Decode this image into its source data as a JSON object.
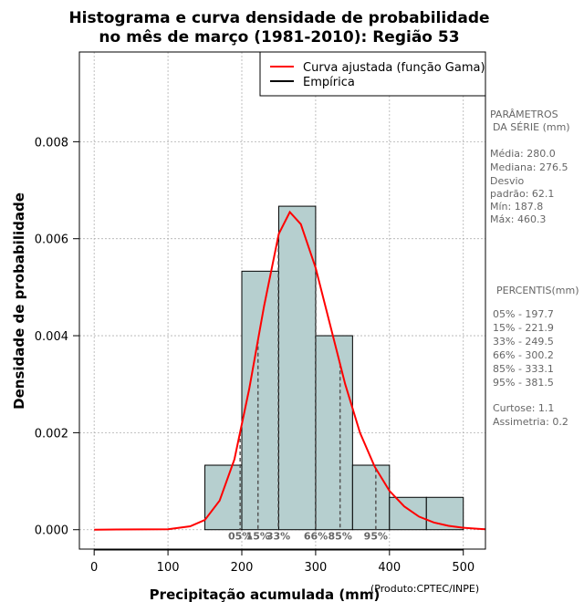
{
  "chart_data": {
    "type": "bar",
    "title": [
      "Histograma e curva densidade de probabilidade",
      "no mês de março (1981-2010): Região 53"
    ],
    "xlabel": "Precipitação acumulada (mm)",
    "ylabel": "Densidade de probabilidade",
    "xlim": [
      -20,
      530
    ],
    "ylim": [
      -0.0004,
      0.00985
    ],
    "x_ticks": [
      0,
      100,
      200,
      300,
      400,
      500
    ],
    "y_ticks": [
      0.0,
      0.002,
      0.004,
      0.006,
      0.008
    ],
    "y_tick_labels": [
      "0.000",
      "0.002",
      "0.004",
      "0.006",
      "0.008"
    ],
    "grid": true,
    "histogram": {
      "bin_edges": [
        150,
        200,
        250,
        300,
        350,
        400,
        450,
        500
      ],
      "densities": [
        0.00133,
        0.00533,
        0.00667,
        0.004,
        0.00133,
        0.000667,
        0.000667
      ],
      "fill_color": "#b6cfcf"
    },
    "fitted_curve": {
      "name": "Curva ajustada (função Gama)",
      "color": "#ff0000",
      "x": [
        0,
        100,
        130,
        150,
        170,
        190,
        210,
        230,
        250,
        265,
        280,
        300,
        320,
        340,
        360,
        380,
        400,
        420,
        440,
        460,
        480,
        500,
        520,
        530
      ],
      "y": [
        0.0,
        1e-05,
        7e-05,
        0.0002,
        0.0006,
        0.00145,
        0.0029,
        0.0046,
        0.0061,
        0.00655,
        0.0063,
        0.0054,
        0.0042,
        0.003,
        0.002,
        0.0013,
        0.0008,
        0.00048,
        0.00027,
        0.00015,
        8e-05,
        4e-05,
        2e-05,
        1e-05
      ]
    },
    "empirical": {
      "name": "Empírica",
      "color": "#000000"
    },
    "percentile_lines": [
      {
        "label": "05%",
        "value": 197.7
      },
      {
        "label": "15%",
        "value": 221.9
      },
      {
        "label": "33%",
        "value": 249.5
      },
      {
        "label": "66%",
        "value": 300.2
      },
      {
        "label": "85%",
        "value": 333.1
      },
      {
        "label": "95%",
        "value": 381.5
      }
    ],
    "legend_position": "top-right",
    "credit": "(Produto:CPTEC/INPE)"
  },
  "side_panel": {
    "params_title_1": "PARÂMETROS",
    "params_title_2": "DA SÉRIE (mm)",
    "media": "Média:  280.0",
    "mediana": "Mediana:  276.5",
    "desvio_1": "Desvio",
    "desvio_2": "padrão:  62.1",
    "min": "Mín:  187.8",
    "max": "Máx:  460.3",
    "percentis_title": "PERCENTIS(mm)",
    "p05": "05% -  197.7",
    "p15": "15% -  221.9",
    "p33": "33% -  249.5",
    "p66": "66% -  300.2",
    "p85": "85% -  333.1",
    "p95": "95% -  381.5",
    "curtose": "Curtose:  1.1",
    "assimetria": "Assimetria:  0.2"
  }
}
